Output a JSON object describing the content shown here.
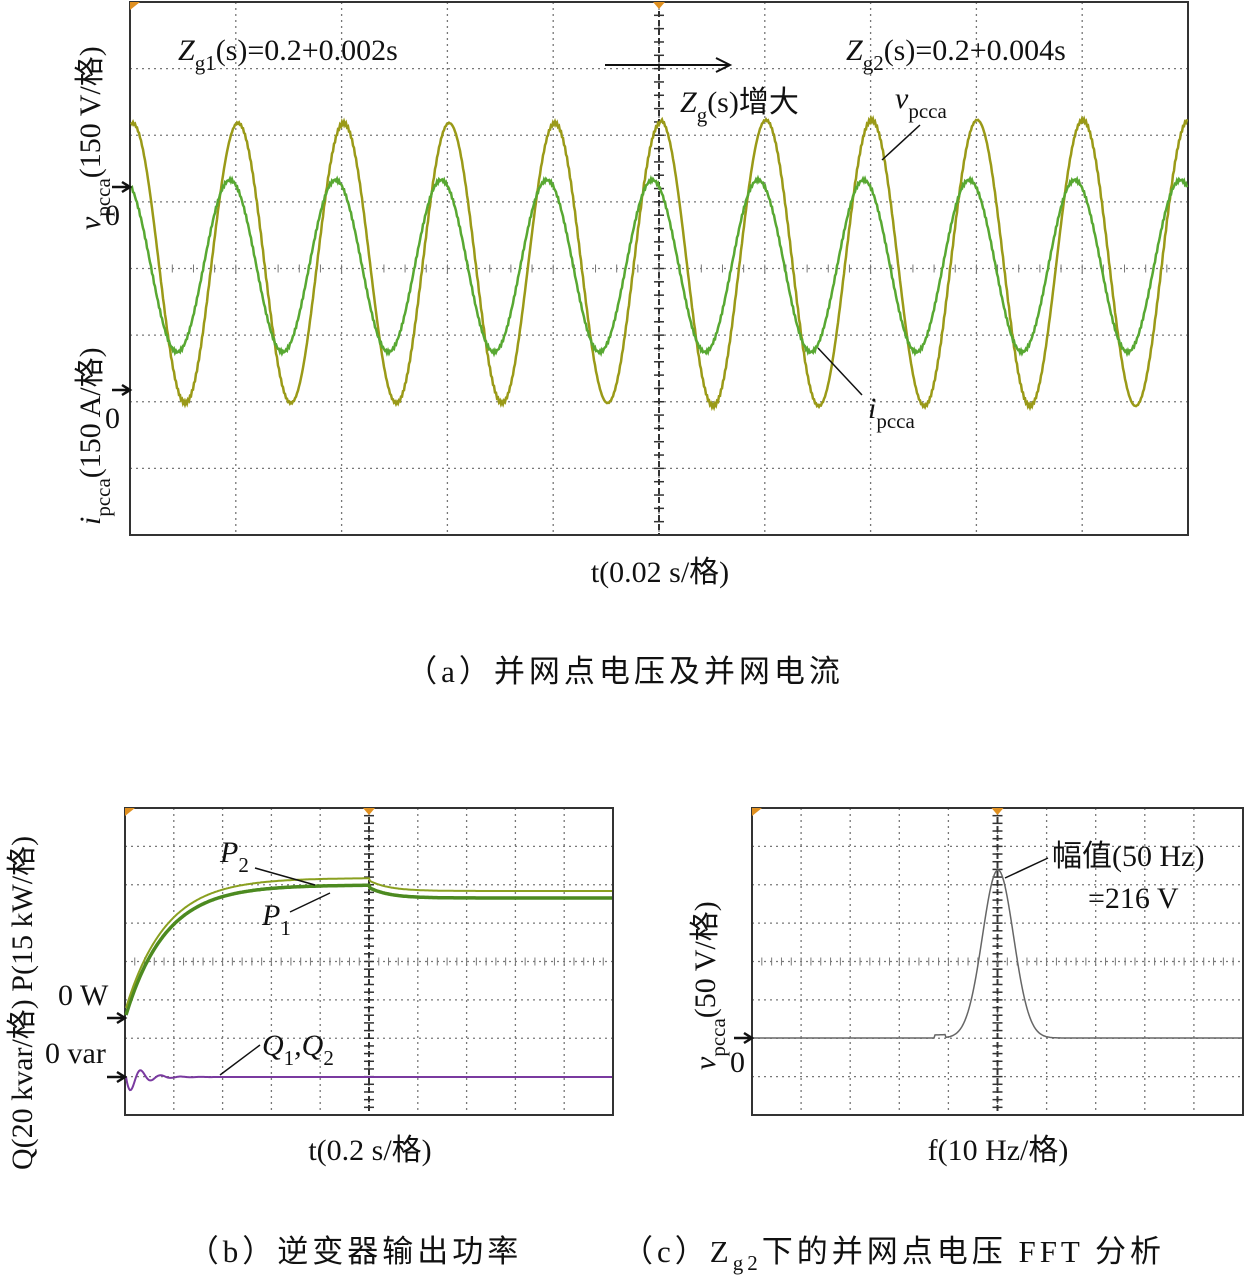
{
  "panel_a": {
    "zg1": {
      "z": "Z",
      "sub": "g1",
      "rest": "(s)=0.2+0.002s"
    },
    "zg2": {
      "z": "Z",
      "sub": "g2",
      "rest": "(s)=0.2+0.004s"
    },
    "zg": {
      "z": "Z",
      "sub": "g",
      "rest": "(s)增大"
    },
    "v_label": {
      "v": "v",
      "sub": "pcca"
    },
    "i_label": {
      "i": "i",
      "sub": "pcca"
    },
    "y_label_v": {
      "v": "v",
      "sub": "pcca",
      "rest": "(150 V/格)"
    },
    "y_label_i": {
      "i": "i",
      "sub": "pcca",
      "rest": "(150 A/格)"
    },
    "zero_v": "0",
    "zero_i": "0",
    "x_label": "t(0.02 s/格)",
    "caption": "（a）并网点电压及并网电流"
  },
  "panel_b": {
    "p2": {
      "p": "P",
      "sub": "2"
    },
    "p1": {
      "p": "P",
      "sub": "1"
    },
    "q": {
      "q1": "Q",
      "s1": "1",
      "comma": ",Q",
      "s2": "2"
    },
    "zero_w": "0 W",
    "zero_var": "0 var",
    "y_label": "Q(20 kvar/格) P(15 kW/格)",
    "x_label": "t(0.2 s/格)",
    "caption": "（b）逆变器输出功率"
  },
  "panel_c": {
    "amp": "幅值(50 Hz)",
    "amp_val": "=216 V",
    "y_label": {
      "v": "v",
      "sub": "pcca",
      "rest": "(50 V/格)"
    },
    "zero": "0",
    "x_label": "f(10 Hz/格)",
    "caption": {
      "pre": "（c）Z",
      "sub": "g2",
      "rest": "下的并网点电压 FFT 分析"
    }
  }
}
